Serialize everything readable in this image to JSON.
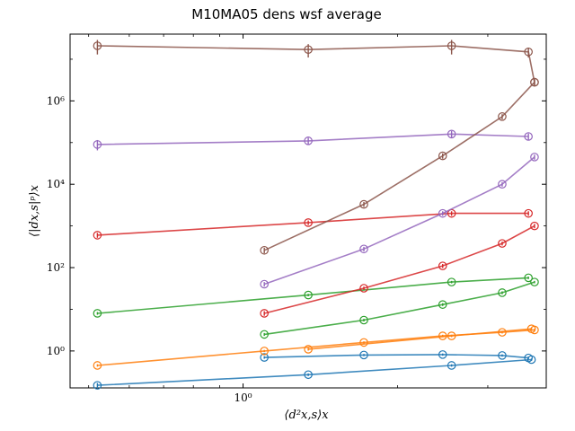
{
  "chart_data": {
    "type": "line",
    "title": "M10MA05 dens wsf average",
    "xlabel": "⟨d²x,s⟩x",
    "ylabel": "⟨|dx,s|ᵖ⟩x",
    "xscale": "log",
    "yscale": "log",
    "xlim": [
      0.46,
      3.9
    ],
    "ylim": [
      0.13,
      40000000
    ],
    "x_ticks": [
      {
        "value": 1.0,
        "label": "10⁰"
      }
    ],
    "x_minor_ticks": [
      0.5,
      0.6,
      0.7,
      0.8,
      0.9,
      2,
      3
    ],
    "y_ticks": [
      {
        "value": 1,
        "label": "10⁰"
      },
      {
        "value": 100,
        "label": "10²"
      },
      {
        "value": 10000,
        "label": "10⁴"
      },
      {
        "value": 1000000,
        "label": "10⁶"
      }
    ],
    "grid": false,
    "series": [
      {
        "color": "#1f77b4",
        "x": [
          0.52,
          1.34,
          2.55,
          3.65
        ],
        "y": [
          0.15,
          0.27,
          0.45,
          0.62
        ],
        "y_err": [
          0.02,
          0.02,
          0.03,
          0.04
        ]
      },
      {
        "color": "#1f77b4",
        "x": [
          1.1,
          1.72,
          2.45,
          3.2,
          3.6
        ],
        "y": [
          0.7,
          0.8,
          0.82,
          0.78,
          0.68
        ],
        "y_err": [
          0.05,
          0.05,
          0.05,
          0.05,
          0.05
        ]
      },
      {
        "color": "#ff7f0e",
        "x": [
          0.52,
          1.1,
          1.72,
          2.45,
          3.2,
          3.7
        ],
        "y": [
          0.45,
          1.0,
          1.6,
          2.3,
          2.8,
          3.2
        ],
        "y_err": [
          0.03,
          0.06,
          0.1,
          0.15,
          0.18,
          0.2
        ]
      },
      {
        "color": "#ff7f0e",
        "x": [
          1.34,
          2.55,
          3.65
        ],
        "y": [
          1.1,
          2.3,
          3.4
        ],
        "y_err": [
          0.08,
          0.15,
          0.2
        ]
      },
      {
        "color": "#2ca02c",
        "x": [
          0.52,
          1.34,
          2.55,
          3.6
        ],
        "y": [
          8,
          22,
          45,
          57
        ],
        "y_err": [
          0.6,
          1.5,
          3,
          4
        ]
      },
      {
        "color": "#2ca02c",
        "x": [
          1.1,
          1.72,
          2.45,
          3.2,
          3.7
        ],
        "y": [
          2.5,
          5.5,
          13,
          25,
          45
        ],
        "y_err": [
          0.2,
          0.4,
          1,
          2,
          3
        ]
      },
      {
        "color": "#d62728",
        "x": [
          0.52,
          1.34,
          2.55,
          3.6
        ],
        "y": [
          600,
          1200,
          2000,
          2000
        ],
        "y_err": [
          80,
          150,
          250,
          250
        ]
      },
      {
        "color": "#d62728",
        "x": [
          1.1,
          1.72,
          2.45,
          3.2,
          3.7
        ],
        "y": [
          8,
          32,
          110,
          380,
          1000
        ],
        "y_err": [
          1,
          3,
          12,
          40,
          120
        ]
      },
      {
        "color": "#9467bd",
        "x": [
          0.52,
          1.34,
          2.55,
          3.6
        ],
        "y": [
          90000,
          110000,
          160000,
          140000
        ],
        "y_err": [
          25000,
          20000,
          30000,
          25000
        ]
      },
      {
        "color": "#9467bd",
        "x": [
          1.1,
          1.72,
          2.45,
          3.2,
          3.7
        ],
        "y": [
          40,
          280,
          2000,
          10000,
          45000
        ],
        "y_err": [
          5,
          35,
          250,
          1200,
          6000
        ]
      },
      {
        "color": "#8c564b",
        "x": [
          0.52,
          1.34,
          2.55,
          3.6,
          3.7
        ],
        "y": [
          21000000,
          17000000,
          21000000,
          15000000,
          2800000
        ],
        "y_err": [
          8000000,
          6000000,
          8000000,
          4000000,
          500000
        ]
      },
      {
        "color": "#8c564b",
        "x": [
          1.1,
          1.72,
          2.45,
          3.2,
          3.7
        ],
        "y": [
          260,
          3300,
          48000,
          420000,
          2800000
        ],
        "y_err": [
          40,
          450,
          7000,
          60000,
          500000
        ]
      }
    ]
  }
}
